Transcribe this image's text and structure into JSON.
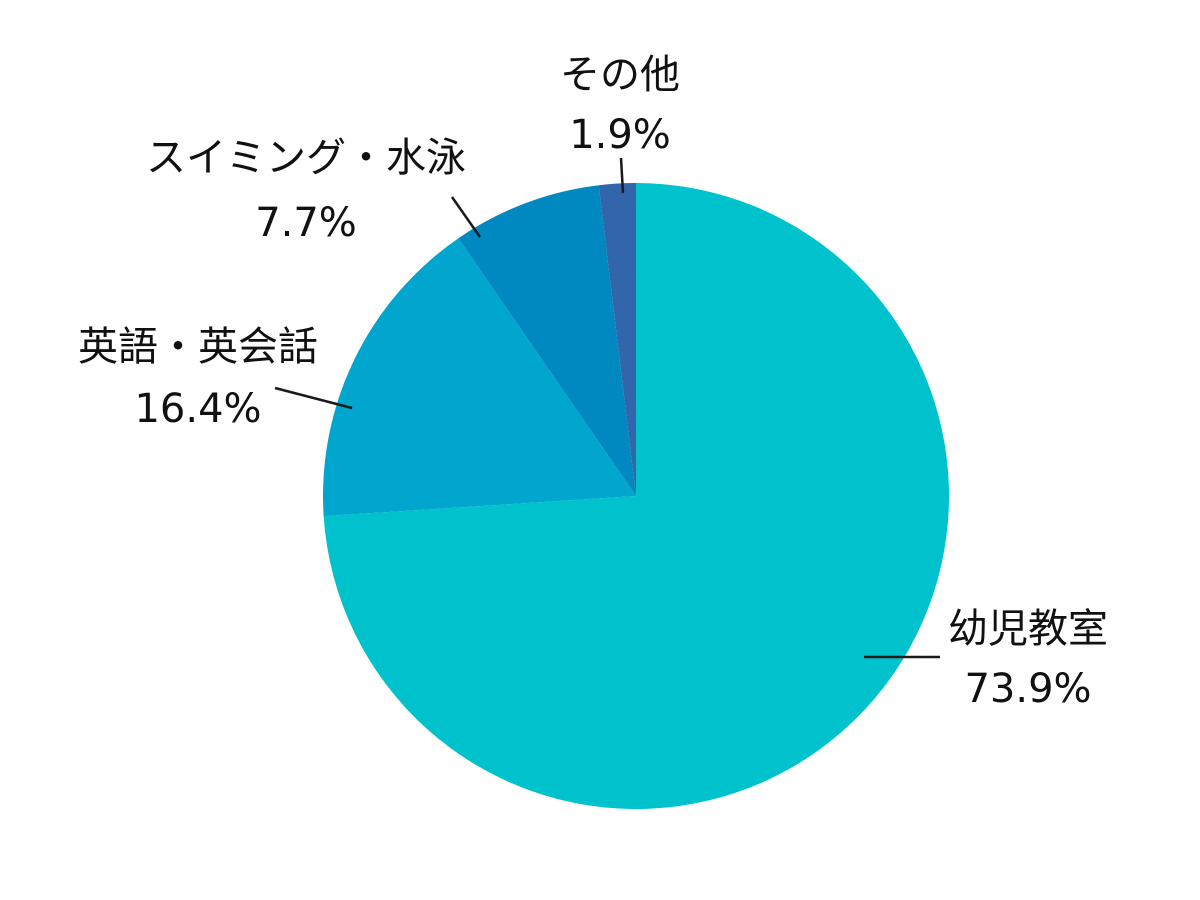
{
  "chart_data": {
    "type": "pie",
    "start_angle_deg": 90,
    "direction": "clockwise",
    "slices": [
      {
        "label": "幼児教室",
        "value": 73.9,
        "display": "73.9%",
        "color": "#00C2CC"
      },
      {
        "label": "英語・英会話",
        "value": 16.4,
        "display": "16.4%",
        "color": "#00A6CD"
      },
      {
        "label": "スイミング・水泳",
        "value": 7.7,
        "display": "7.7%",
        "color": "#0088C1"
      },
      {
        "label": "その他",
        "value": 1.9,
        "display": "1.9%",
        "color": "#3266AA"
      }
    ]
  }
}
